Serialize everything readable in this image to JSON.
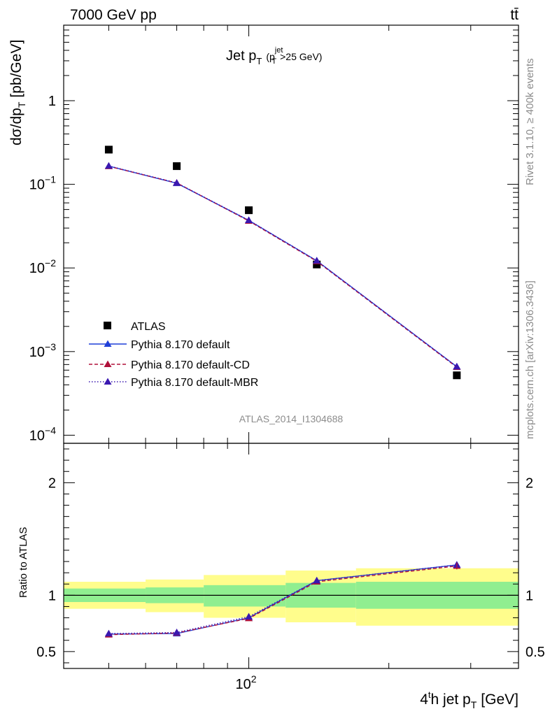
{
  "header": {
    "energy_label": "7000 GeV pp",
    "process_label": "tt̄"
  },
  "side_labels": {
    "rivet": "Rivet 3.1.10, ≥ 400k events",
    "mcplots": "mcplots.cern.ch [arXiv:1306.3436]"
  },
  "analysis_id": "ATLAS_2014_I1304688",
  "chart_data": [
    {
      "type": "scatter",
      "panel": "main",
      "title_main": "Jet p",
      "title_sub": "T",
      "title_cut": "(p",
      "title_cut_sup": "jet",
      "title_cut_sub": "T",
      "title_cut_rest": ">25 GeV)",
      "ylabel_main": "dσ/dp",
      "ylabel_sub": "T",
      "ylabel_unit": "[pb/GeV]",
      "yscale": "log",
      "xscale": "log",
      "xlim": [
        40,
        380
      ],
      "ylim": [
        8e-05,
        8
      ],
      "ytick_labels": [
        {
          "value": 1,
          "base": "1",
          "exp": ""
        },
        {
          "value": 0.1,
          "base": "10",
          "exp": "−1"
        },
        {
          "value": 0.01,
          "base": "10",
          "exp": "−2"
        },
        {
          "value": 0.001,
          "base": "10",
          "exp": "−3"
        },
        {
          "value": 0.0001,
          "base": "10",
          "exp": "−4"
        }
      ],
      "legend_position": "lower-left",
      "series": [
        {
          "name": "ATLAS",
          "marker": "square",
          "color": "#000000",
          "x": [
            50,
            70,
            100,
            140,
            280
          ],
          "y": [
            0.26,
            0.165,
            0.049,
            0.011,
            0.00052
          ]
        },
        {
          "name": "Pythia 8.170 default",
          "marker": "triangle",
          "line": "solid",
          "color": "#1f3fd8",
          "x": [
            50,
            70,
            100,
            140,
            280
          ],
          "y": [
            0.165,
            0.103,
            0.037,
            0.0122,
            0.00066
          ]
        },
        {
          "name": "Pythia 8.170 default-CD",
          "marker": "triangle",
          "line": "dashed",
          "color": "#b0103a",
          "x": [
            50,
            70,
            100,
            140,
            280
          ],
          "y": [
            0.164,
            0.104,
            0.0365,
            0.012,
            0.00065
          ]
        },
        {
          "name": "Pythia 8.170 default-MBR",
          "marker": "triangle",
          "line": "dotted",
          "color": "#3a18b0",
          "x": [
            50,
            70,
            100,
            140,
            280
          ],
          "y": [
            0.166,
            0.104,
            0.0372,
            0.0122,
            0.00066
          ]
        }
      ]
    },
    {
      "type": "scatter",
      "panel": "ratio",
      "ylabel": "Ratio to ATLAS",
      "xlabel_pre": "4",
      "xlabel_sup": "t",
      "xlabel_mid": "h jet p",
      "xlabel_sub": "T",
      "xlabel_unit": "[GeV]",
      "xlim": [
        40,
        380
      ],
      "ylim": [
        0.35,
        2.35
      ],
      "ytick_labels": [
        {
          "value": 0.5,
          "label": "0.5"
        },
        {
          "value": 1,
          "label": "1"
        },
        {
          "value": 2,
          "label": "2"
        }
      ],
      "xtick_labels": [
        {
          "value": 100,
          "base": "10",
          "exp": "2"
        }
      ],
      "bands": [
        {
          "x": [
            40,
            60
          ],
          "inner": [
            0.94,
            1.06
          ],
          "outer": [
            0.88,
            1.12
          ]
        },
        {
          "x": [
            60,
            80
          ],
          "inner": [
            0.93,
            1.07
          ],
          "outer": [
            0.85,
            1.14
          ]
        },
        {
          "x": [
            80,
            120
          ],
          "inner": [
            0.9,
            1.09
          ],
          "outer": [
            0.8,
            1.18
          ]
        },
        {
          "x": [
            120,
            170
          ],
          "inner": [
            0.89,
            1.11
          ],
          "outer": [
            0.76,
            1.22
          ]
        },
        {
          "x": [
            170,
            380
          ],
          "inner": [
            0.88,
            1.12
          ],
          "outer": [
            0.73,
            1.24
          ]
        }
      ],
      "band_colors": {
        "inner": "#90ee90",
        "outer": "#fffd8c"
      },
      "series": [
        {
          "name": "Pythia 8.170 default",
          "color": "#1f3fd8",
          "line": "solid",
          "x": [
            50,
            70,
            100,
            140,
            280
          ],
          "y": [
            0.655,
            0.66,
            0.8,
            1.13,
            1.27
          ]
        },
        {
          "name": "Pythia 8.170 default-CD",
          "color": "#b0103a",
          "line": "dashed",
          "x": [
            50,
            70,
            100,
            140,
            280
          ],
          "y": [
            0.65,
            0.665,
            0.795,
            1.12,
            1.26
          ]
        },
        {
          "name": "Pythia 8.170 default-MBR",
          "color": "#3a18b0",
          "line": "dotted",
          "x": [
            50,
            70,
            100,
            140,
            280
          ],
          "y": [
            0.66,
            0.67,
            0.81,
            1.13,
            1.27
          ]
        }
      ]
    }
  ]
}
